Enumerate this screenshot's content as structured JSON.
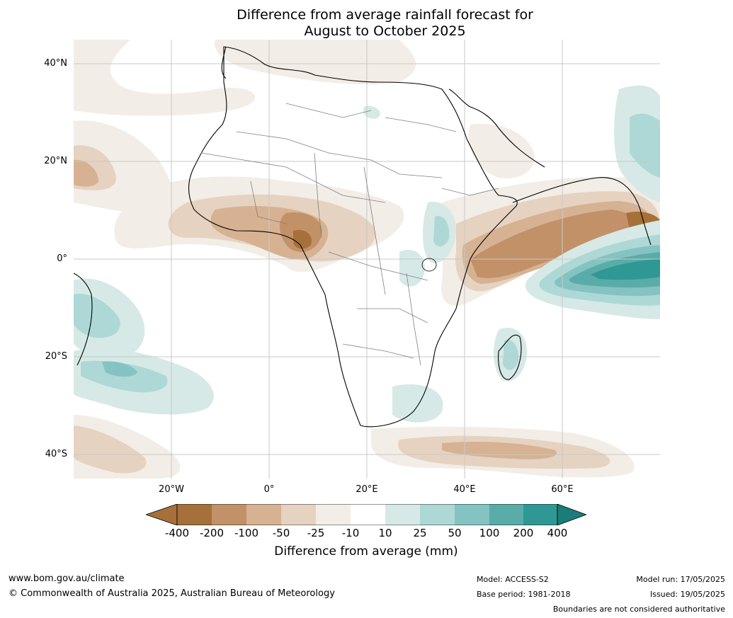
{
  "title_line1": "Difference from average rainfall forecast for",
  "title_line2": "August to October 2025",
  "lat_labels": [
    "40°N",
    "20°N",
    "0°",
    "20°S",
    "40°S"
  ],
  "lon_labels": [
    "20°W",
    "0°",
    "20°E",
    "40°E",
    "60°E"
  ],
  "colorbar": {
    "label": "Difference from average (mm)",
    "ticks": [
      "-400",
      "-200",
      "-100",
      "-50",
      "-25",
      "-10",
      "10",
      "25",
      "50",
      "100",
      "200",
      "400"
    ],
    "colors": [
      "#a5703a",
      "#c29168",
      "#d6b292",
      "#e6d2c0",
      "#f2ede6",
      "#ffffff",
      "#d6e9e7",
      "#add8d6",
      "#84c3c1",
      "#5aaca9",
      "#2f9894",
      "#1b7d7a"
    ]
  },
  "footer": {
    "website": "www.bom.gov.au/climate",
    "copyright": "© Commonwealth of Australia 2025, Australian Bureau of Meteorology",
    "model": "Model: ACCESS-S2",
    "base_period": "Base period: 1981-2018",
    "model_run": "Model run: 17/05/2025",
    "issued": "Issued: 19/05/2025",
    "boundaries": "Boundaries are not considered authoritative"
  }
}
